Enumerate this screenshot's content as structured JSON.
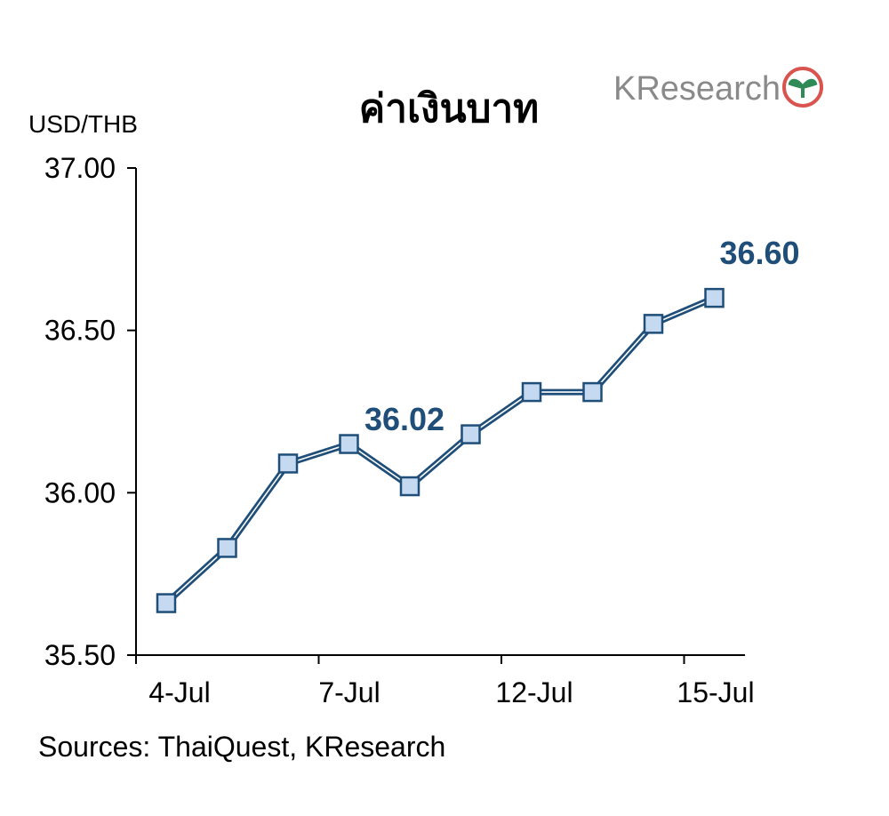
{
  "title": "ค่าเงินบาท",
  "logo": {
    "text": "KResearch",
    "icon": "kasikorn-leaf-icon"
  },
  "source": "Sources: ThaiQuest, KResearch",
  "chart_data": {
    "type": "line",
    "ylabel": "USD/THB",
    "xlabel": "",
    "ylim": [
      35.5,
      37.0
    ],
    "y_ticks": [
      "35.50",
      "36.00",
      "36.50",
      "37.00"
    ],
    "x_tick_labels": [
      "4-Jul",
      "7-Jul",
      "12-Jul",
      "15-Jul"
    ],
    "grid": false,
    "series": [
      {
        "color": "#1f4e79",
        "marker_fill": "#c5d9f1",
        "values": [
          35.66,
          35.83,
          36.09,
          36.15,
          36.02,
          36.18,
          36.31,
          36.31,
          36.52,
          36.6
        ]
      }
    ],
    "annotations": [
      {
        "index": 4,
        "text": "36.02"
      },
      {
        "index": 9,
        "text": "36.60"
      }
    ]
  }
}
